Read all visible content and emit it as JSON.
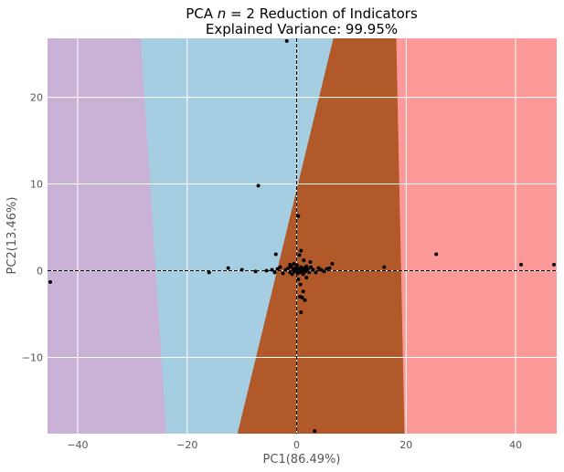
{
  "chart_data": {
    "type": "scatter",
    "title_prefix": "PCA ",
    "title_n": "n",
    "title_eq": " = 2",
    "title_suffix": " Reduction of Indicators",
    "subtitle": "Explained Variance: 99.95%",
    "xlabel": "PC1(86.49%)",
    "ylabel": "PC2(13.46%)",
    "xlim": [
      -45.5,
      47.5
    ],
    "ylim": [
      -18.8,
      26.8
    ],
    "xticks": [
      -40,
      -20,
      0,
      20,
      40
    ],
    "yticks": [
      -10,
      0,
      10,
      20
    ],
    "grid": true,
    "crosshair_lines": {
      "x": 0,
      "y": 0,
      "style": "dashed",
      "color": "#000000"
    },
    "regions": [
      {
        "name": "region-purple",
        "color": "#cab2d6",
        "boundary_right": [
          [
            -28.5,
            26.8
          ],
          [
            -23.8,
            -18.8
          ]
        ]
      },
      {
        "name": "region-blue",
        "color": "#a6cee3",
        "boundary_right": [
          [
            6.7,
            26.8
          ],
          [
            -10.8,
            -18.8
          ]
        ]
      },
      {
        "name": "region-brown",
        "color": "#b15928",
        "boundary_right": [
          [
            18.2,
            26.8
          ],
          [
            19.7,
            -18.8
          ]
        ]
      },
      {
        "name": "region-pink",
        "color": "#fb9a99"
      }
    ],
    "points": [
      [
        -45,
        -1.3
      ],
      [
        -1.8,
        26.5
      ],
      [
        -7,
        9.8
      ],
      [
        0.3,
        6.3
      ],
      [
        3.3,
        -18.5
      ],
      [
        25.5,
        1.9
      ],
      [
        41,
        0.7
      ],
      [
        47,
        0.7
      ],
      [
        16,
        0.4
      ],
      [
        -16,
        -0.2
      ],
      [
        -12.5,
        0.3
      ],
      [
        -10,
        0.1
      ],
      [
        -7.5,
        -0.1
      ],
      [
        -5.5,
        0
      ],
      [
        -4.5,
        0.1
      ],
      [
        -4,
        -0.2
      ],
      [
        -3.5,
        0.2
      ],
      [
        -3.8,
        1.9
      ],
      [
        -3,
        0.4
      ],
      [
        -2.5,
        -0.3
      ],
      [
        -2,
        0.1
      ],
      [
        -1.5,
        0.3
      ],
      [
        -1.2,
        -0.2
      ],
      [
        -1,
        0.5
      ],
      [
        -0.8,
        -0.4
      ],
      [
        -0.6,
        0.2
      ],
      [
        -0.4,
        -0.1
      ],
      [
        -0.2,
        0.3
      ],
      [
        0,
        0
      ],
      [
        0.2,
        -0.3
      ],
      [
        0.4,
        0.2
      ],
      [
        0.6,
        -0.2
      ],
      [
        0.8,
        0.4
      ],
      [
        1,
        0
      ],
      [
        1.2,
        -0.4
      ],
      [
        1.4,
        0.3
      ],
      [
        1.6,
        -0.1
      ],
      [
        1.8,
        0.5
      ],
      [
        2,
        0.2
      ],
      [
        2.3,
        -0.2
      ],
      [
        2.6,
        0.4
      ],
      [
        3,
        0.1
      ],
      [
        3.5,
        -0.2
      ],
      [
        4,
        0.3
      ],
      [
        4.5,
        0.1
      ],
      [
        5,
        -0.1
      ],
      [
        5.5,
        0.2
      ],
      [
        6,
        0.3
      ],
      [
        6.5,
        0.8
      ],
      [
        1.3,
        1.2
      ],
      [
        0.5,
        1.8
      ],
      [
        0.8,
        2.3
      ],
      [
        0.3,
        -1.0
      ],
      [
        0.7,
        -1.6
      ],
      [
        1.2,
        -2.4
      ],
      [
        1.0,
        -3.1
      ],
      [
        1.5,
        -3.4
      ],
      [
        0.6,
        -3.0
      ],
      [
        0.8,
        -4.8
      ],
      [
        -0.5,
        0.8
      ],
      [
        2.5,
        1.0
      ],
      [
        1.8,
        -0.8
      ],
      [
        -1.2,
        0.7
      ],
      [
        0.1,
        0.6
      ]
    ],
    "point_color": "#000000"
  }
}
